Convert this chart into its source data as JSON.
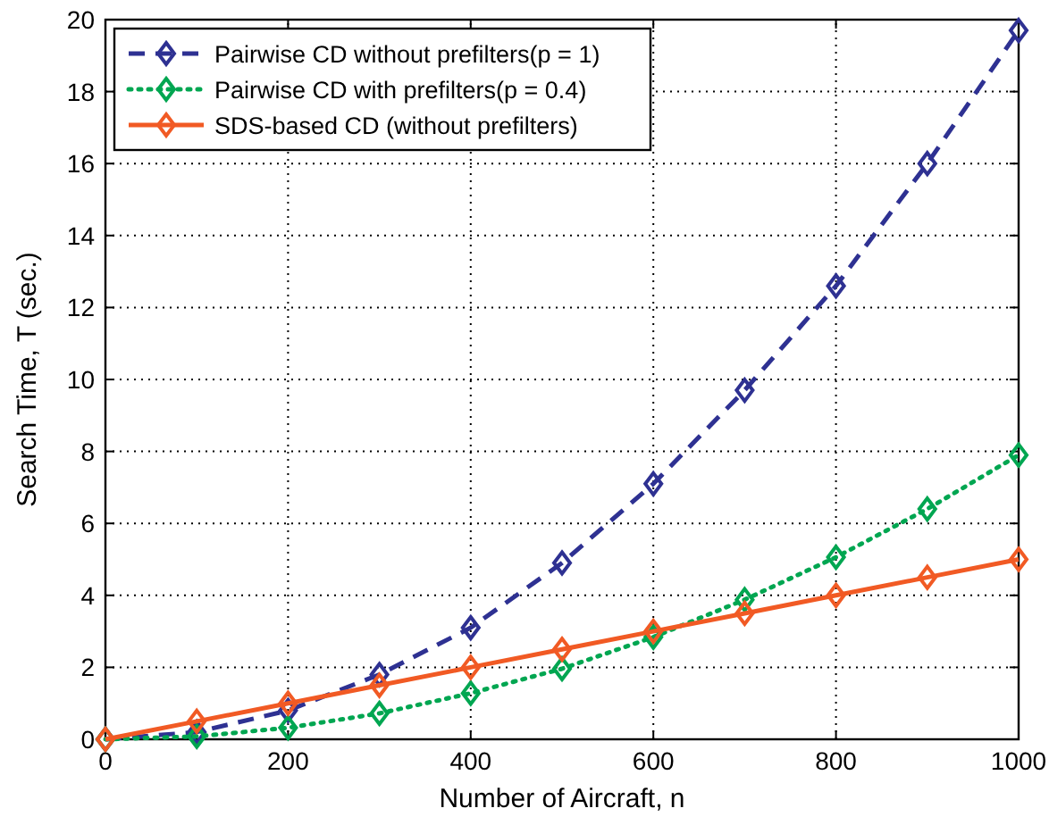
{
  "chart_data": {
    "type": "line",
    "xlabel": "Number of Aircraft, n",
    "ylabel": "Search Time, T (sec.)",
    "x": [
      0,
      100,
      200,
      300,
      400,
      500,
      600,
      700,
      800,
      900,
      1000
    ],
    "series": [
      {
        "name": "Pairwise CD without prefilters(p = 1)",
        "color": "#2e3192",
        "line_style": "dashed",
        "values": [
          0,
          0.2,
          0.8,
          1.8,
          3.1,
          4.9,
          7.1,
          9.7,
          12.6,
          16.0,
          19.7
        ]
      },
      {
        "name": "Pairwise CD with prefilters(p = 0.4)",
        "color": "#00a651",
        "line_style": "dotted",
        "values": [
          0,
          0.08,
          0.32,
          0.72,
          1.28,
          1.96,
          2.84,
          3.88,
          5.06,
          6.4,
          7.9
        ]
      },
      {
        "name": "SDS-based CD (without prefilters)",
        "color": "#f15a24",
        "line_style": "solid",
        "values": [
          0,
          0.5,
          1,
          1.5,
          2,
          2.5,
          3,
          3.5,
          4,
          4.5,
          5
        ]
      }
    ],
    "xlim": [
      0,
      1000
    ],
    "xticks": [
      0,
      200,
      400,
      600,
      800,
      1000
    ],
    "ylim": [
      0,
      20
    ],
    "yticks": [
      0,
      2,
      4,
      6,
      8,
      10,
      12,
      14,
      16,
      18,
      20
    ],
    "grid": true,
    "legend": "top left",
    "marker": "diamond"
  }
}
